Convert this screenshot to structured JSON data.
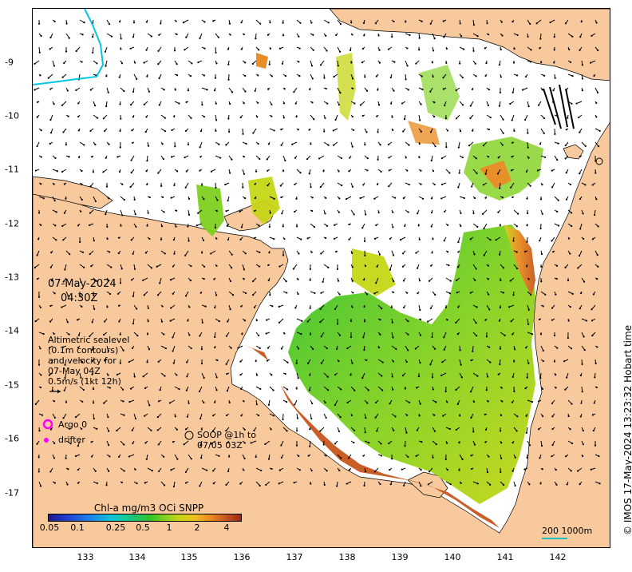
{
  "map": {
    "lon_ticks": [
      "133",
      "134",
      "135",
      "136",
      "137",
      "138",
      "139",
      "140",
      "141",
      "142"
    ],
    "lat_ticks": [
      "-9",
      "-10",
      "-11",
      "-12",
      "-13",
      "-14",
      "-15",
      "-16",
      "-17"
    ],
    "datetime": {
      "date": "07-May-2024",
      "time": "04:30Z"
    },
    "altimetry_note": [
      "Altimetric sealevel",
      "(0.1m contours)",
      "and velocity for",
      "07-May 04Z",
      "0.5m/s (1kt 12h)"
    ],
    "legend": {
      "argo": "Argo 0",
      "drifter": "drifter",
      "soop_line1": "SOOP @1h to",
      "soop_line2": "07/05 03Z"
    },
    "colorbar": {
      "title": "Chl-a mg/m3 OCi SNPP",
      "ticks": [
        "0.05",
        "0.1",
        "0.25",
        "0.5",
        "1",
        "2",
        "4"
      ]
    },
    "scale": {
      "label": "200  1000m"
    },
    "credit": "© IMOS 17-May-2024 13:23:32 Hobart time",
    "colors": {
      "land": "#f8c99d",
      "coast_line": "#000000",
      "arrow": "#000000",
      "argo": "#ff00ff",
      "drifter": "#ff00ff",
      "cyan_line": "#00c8e0"
    }
  }
}
